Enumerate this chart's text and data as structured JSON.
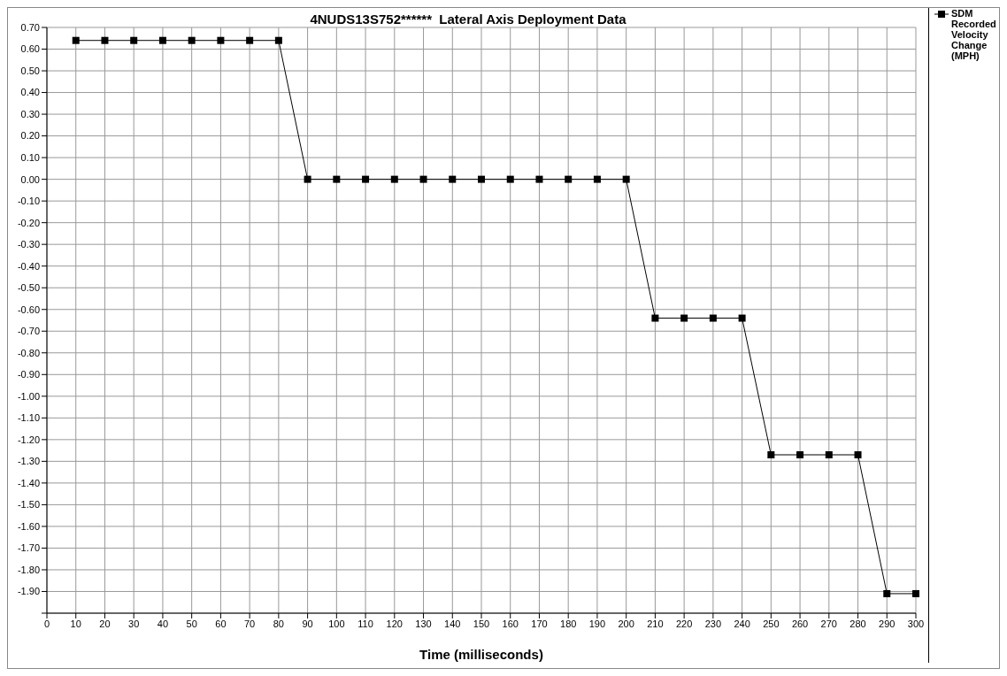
{
  "chart_data": {
    "type": "line",
    "title": "4NUDS13S752******  Lateral Axis Deployment Data",
    "xlabel": "Time (milliseconds)",
    "categories": [
      "0",
      "10",
      "20",
      "30",
      "40",
      "50",
      "60",
      "70",
      "80",
      "90",
      "100",
      "110",
      "120",
      "130",
      "140",
      "150",
      "160",
      "170",
      "180",
      "190",
      "200",
      "210",
      "220",
      "230",
      "240",
      "250",
      "260",
      "270",
      "280",
      "290",
      "300"
    ],
    "series": [
      {
        "name": "SDM Recorded Velocity Change (MPH)",
        "color": "#000000",
        "values": [
          null,
          0.64,
          0.64,
          0.64,
          0.64,
          0.64,
          0.64,
          0.64,
          0.64,
          0,
          0,
          0,
          0,
          0,
          0,
          0,
          0,
          0,
          0,
          0,
          0,
          -0.64,
          -0.64,
          -0.64,
          -0.64,
          -1.27,
          -1.27,
          -1.27,
          -1.27,
          -1.91,
          -1.91
        ]
      }
    ],
    "ylim": [
      -2.0,
      0.7
    ],
    "yticks": [
      {
        "value": 0.7,
        "label": "0.70"
      },
      {
        "value": 0.6,
        "label": "0.60"
      },
      {
        "value": 0.5,
        "label": "0.50"
      },
      {
        "value": 0.4,
        "label": "0.40"
      },
      {
        "value": 0.3,
        "label": "0.30"
      },
      {
        "value": 0.2,
        "label": "0.20"
      },
      {
        "value": 0.1,
        "label": "0.10"
      },
      {
        "value": 0,
        "label": "0.00"
      },
      {
        "value": -0.1,
        "label": "-0.10"
      },
      {
        "value": -0.2,
        "label": "-0.20"
      },
      {
        "value": -0.3,
        "label": "-0.30"
      },
      {
        "value": -0.4,
        "label": "-0.40"
      },
      {
        "value": -0.5,
        "label": "-0.50"
      },
      {
        "value": -0.6,
        "label": "-0.60"
      },
      {
        "value": -0.7,
        "label": "-0.70"
      },
      {
        "value": -0.8,
        "label": "-0.80"
      },
      {
        "value": -0.9,
        "label": "-0.90"
      },
      {
        "value": -1.0,
        "label": "-1.00"
      },
      {
        "value": -1.1,
        "label": "-1.10"
      },
      {
        "value": -1.2,
        "label": "-1.20"
      },
      {
        "value": -1.3,
        "label": "-1.30"
      },
      {
        "value": -1.4,
        "label": "-1.40"
      },
      {
        "value": -1.5,
        "label": "-1.50"
      },
      {
        "value": -1.6,
        "label": "-1.60"
      },
      {
        "value": -1.7,
        "label": "-1.70"
      },
      {
        "value": -1.8,
        "label": "-1.80"
      },
      {
        "value": -1.9,
        "label": "-1.90"
      },
      {
        "value": -2.0,
        "label": null
      }
    ],
    "grid": true,
    "legend": "top right",
    "marker": "square",
    "line_style": "solid"
  }
}
